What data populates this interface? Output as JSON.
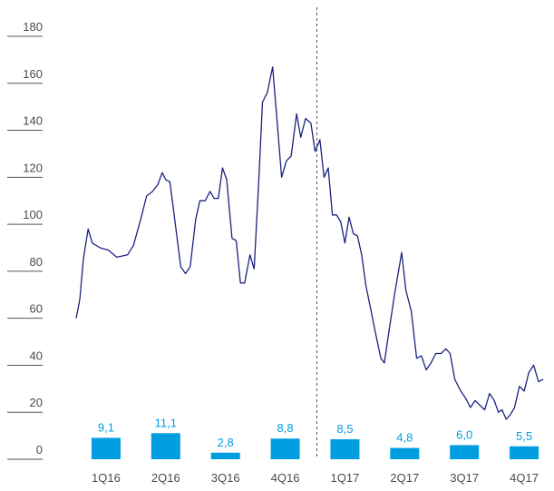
{
  "chart_data": {
    "type": "bar+line",
    "ylim": [
      0,
      180
    ],
    "yticks": [
      0,
      20,
      40,
      60,
      80,
      100,
      120,
      140,
      160,
      180
    ],
    "categories": [
      "1Q16",
      "2Q16",
      "3Q16",
      "4Q16",
      "1Q17",
      "2Q17",
      "3Q17",
      "4Q17"
    ],
    "bars": {
      "values": [
        9.1,
        11.1,
        2.8,
        8.8,
        8.5,
        4.8,
        6.0,
        5.5
      ],
      "labels": [
        "9,1",
        "11,1",
        "2,8",
        "8,8",
        "8,5",
        "4,8",
        "6,0",
        "5,5"
      ],
      "scale_max": 20,
      "color": "#009ee0"
    },
    "line": {
      "color": "#1a237e",
      "x_range": [
        0,
        8
      ],
      "points": [
        [
          0.0,
          60
        ],
        [
          0.06,
          68
        ],
        [
          0.12,
          85
        ],
        [
          0.2,
          98
        ],
        [
          0.27,
          92
        ],
        [
          0.4,
          90
        ],
        [
          0.54,
          89
        ],
        [
          0.68,
          86
        ],
        [
          0.86,
          87
        ],
        [
          0.96,
          91
        ],
        [
          1.08,
          102
        ],
        [
          1.18,
          112
        ],
        [
          1.28,
          114
        ],
        [
          1.37,
          117
        ],
        [
          1.44,
          122
        ],
        [
          1.5,
          119
        ],
        [
          1.57,
          118
        ],
        [
          1.66,
          100
        ],
        [
          1.75,
          82
        ],
        [
          1.83,
          79
        ],
        [
          1.91,
          82
        ],
        [
          2.0,
          102
        ],
        [
          2.07,
          110
        ],
        [
          2.16,
          110
        ],
        [
          2.24,
          114
        ],
        [
          2.31,
          111
        ],
        [
          2.38,
          111
        ],
        [
          2.45,
          124
        ],
        [
          2.52,
          119
        ],
        [
          2.61,
          94
        ],
        [
          2.68,
          93
        ],
        [
          2.75,
          75
        ],
        [
          2.82,
          75
        ],
        [
          2.91,
          87
        ],
        [
          2.98,
          81
        ],
        [
          3.06,
          120
        ],
        [
          3.12,
          152
        ],
        [
          3.2,
          156
        ],
        [
          3.29,
          167
        ],
        [
          3.37,
          142
        ],
        [
          3.44,
          120
        ],
        [
          3.52,
          127
        ],
        [
          3.6,
          129
        ],
        [
          3.69,
          147
        ],
        [
          3.76,
          137
        ],
        [
          3.84,
          145
        ],
        [
          3.93,
          143
        ],
        [
          4.0,
          131
        ],
        [
          4.08,
          136
        ],
        [
          4.15,
          120
        ],
        [
          4.22,
          124
        ],
        [
          4.29,
          104
        ],
        [
          4.36,
          104
        ],
        [
          4.43,
          101
        ],
        [
          4.5,
          92
        ],
        [
          4.57,
          103
        ],
        [
          4.64,
          96
        ],
        [
          4.71,
          95
        ],
        [
          4.78,
          87
        ],
        [
          4.85,
          74
        ],
        [
          4.93,
          64
        ],
        [
          5.01,
          54
        ],
        [
          5.1,
          43
        ],
        [
          5.16,
          41
        ],
        [
          5.24,
          55
        ],
        [
          5.33,
          70
        ],
        [
          5.45,
          88
        ],
        [
          5.52,
          72
        ],
        [
          5.61,
          63
        ],
        [
          5.7,
          43
        ],
        [
          5.78,
          44
        ],
        [
          5.86,
          38
        ],
        [
          5.94,
          41
        ],
        [
          6.02,
          45
        ],
        [
          6.11,
          45
        ],
        [
          6.19,
          47
        ],
        [
          6.26,
          45
        ],
        [
          6.34,
          34
        ],
        [
          6.44,
          29
        ],
        [
          6.52,
          26
        ],
        [
          6.6,
          22
        ],
        [
          6.68,
          25
        ],
        [
          6.76,
          23
        ],
        [
          6.84,
          21
        ],
        [
          6.92,
          28
        ],
        [
          7.0,
          25
        ],
        [
          7.07,
          20
        ],
        [
          7.13,
          21
        ],
        [
          7.2,
          17
        ],
        [
          7.27,
          19
        ],
        [
          7.34,
          22
        ],
        [
          7.42,
          31
        ],
        [
          7.5,
          29
        ],
        [
          7.58,
          37
        ],
        [
          7.66,
          40
        ],
        [
          7.74,
          33
        ],
        [
          7.82,
          34
        ]
      ]
    },
    "divider_after_category": 3
  }
}
